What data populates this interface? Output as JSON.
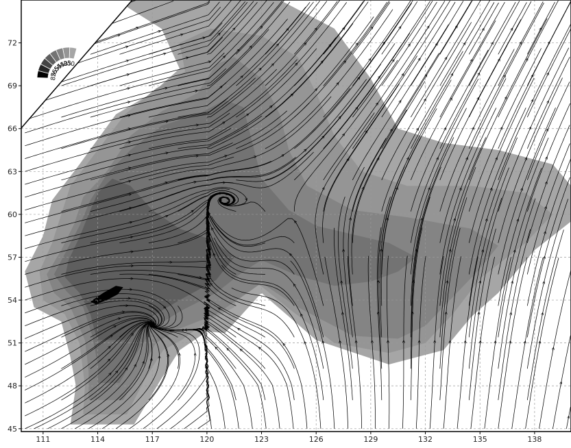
{
  "chart_data": {
    "type": "contour-streamline",
    "x_ticks": [
      "111",
      "114",
      "117",
      "120",
      "123",
      "126",
      "129",
      "132",
      "135",
      "138"
    ],
    "y_ticks": [
      "45",
      "48",
      "51",
      "54",
      "57",
      "60",
      "63",
      "66",
      "69",
      "72"
    ],
    "xlim": [
      109.8,
      140
    ],
    "ylim": [
      44.8,
      75
    ],
    "grid": true,
    "legend_placement": "top-left",
    "legend_levels": [
      "30",
      "35",
      "40",
      "45",
      "55",
      "65",
      "75",
      "85"
    ],
    "legend_colors": [
      "#a6a6a6",
      "#959595",
      "#848484",
      "#737373",
      "#5e5e5e",
      "#454545",
      "#262626",
      "#000000"
    ],
    "contours": [
      {
        "level": 30,
        "color": "#a6a6a6",
        "polygon": [
          [
            112.5,
            45.3
          ],
          [
            116,
            45.3
          ],
          [
            117.5,
            48.5
          ],
          [
            118.5,
            50.5
          ],
          [
            120,
            51.8
          ],
          [
            121,
            51.7
          ],
          [
            123,
            54.5
          ],
          [
            126,
            51.2
          ],
          [
            130,
            49.5
          ],
          [
            133,
            50.5
          ],
          [
            134.5,
            52.8
          ],
          [
            136,
            54.5
          ],
          [
            138,
            57.5
          ],
          [
            140,
            59.5
          ],
          [
            140,
            62
          ],
          [
            139,
            63.5
          ],
          [
            136,
            64.5
          ],
          [
            133,
            65
          ],
          [
            130.5,
            66
          ],
          [
            129,
            69.5
          ],
          [
            127,
            73
          ],
          [
            124,
            75
          ],
          [
            120,
            75
          ],
          [
            117,
            75
          ],
          [
            115,
            75
          ],
          [
            117.5,
            73
          ],
          [
            118.5,
            70.2
          ],
          [
            117,
            68.5
          ],
          [
            115,
            67
          ],
          [
            113,
            63.5
          ],
          [
            111.5,
            61
          ],
          [
            111,
            58.5
          ],
          [
            110,
            56
          ],
          [
            110.5,
            53.5
          ],
          [
            112,
            52.5
          ],
          [
            112.5,
            50
          ],
          [
            112.8,
            48
          ]
        ]
      },
      {
        "level": 35,
        "color": "#959595",
        "polygon": [
          [
            113.2,
            46
          ],
          [
            115.6,
            46
          ],
          [
            116.6,
            48.5
          ],
          [
            117.6,
            50.5
          ],
          [
            118.6,
            51.2
          ],
          [
            120,
            52.5
          ],
          [
            121.5,
            53.5
          ],
          [
            122,
            56
          ],
          [
            124.5,
            53.4
          ],
          [
            127,
            51
          ],
          [
            130,
            50.3
          ],
          [
            132,
            51
          ],
          [
            133.5,
            53
          ],
          [
            135,
            55.5
          ],
          [
            137.5,
            58
          ],
          [
            139,
            60
          ],
          [
            137.5,
            61.5
          ],
          [
            134.5,
            62
          ],
          [
            131,
            62
          ],
          [
            128.5,
            63
          ],
          [
            127,
            65.5
          ],
          [
            126,
            68.5
          ],
          [
            125,
            71
          ],
          [
            123,
            72.5
          ],
          [
            120.2,
            73
          ],
          [
            118.5,
            72
          ],
          [
            118.8,
            70
          ],
          [
            117.2,
            68.8
          ],
          [
            115.5,
            67
          ],
          [
            114,
            64.5
          ],
          [
            112.5,
            62
          ],
          [
            112,
            60
          ],
          [
            111.5,
            58
          ],
          [
            110.8,
            56
          ],
          [
            111,
            54
          ],
          [
            112.2,
            53
          ],
          [
            113,
            51
          ],
          [
            113.3,
            48
          ]
        ]
      },
      {
        "level": 40,
        "color": "#848484",
        "polygon": [
          [
            113.5,
            47
          ],
          [
            115.4,
            47
          ],
          [
            116.3,
            49
          ],
          [
            117.2,
            51
          ],
          [
            118.5,
            52
          ],
          [
            120.5,
            53
          ],
          [
            122,
            54.3
          ],
          [
            123,
            55.2
          ],
          [
            125,
            53.5
          ],
          [
            128,
            51.5
          ],
          [
            130.5,
            51.3
          ],
          [
            132,
            52.2
          ],
          [
            133.5,
            54.2
          ],
          [
            135,
            56.2
          ],
          [
            136,
            57.8
          ],
          [
            134.5,
            59
          ],
          [
            131,
            59.8
          ],
          [
            128,
            60.3
          ],
          [
            125.5,
            62
          ],
          [
            124.5,
            64.5
          ],
          [
            124,
            67
          ],
          [
            123,
            69.5
          ],
          [
            121.5,
            71
          ],
          [
            120.5,
            70.5
          ],
          [
            119.5,
            68.5
          ],
          [
            117.5,
            67.2
          ],
          [
            115.8,
            65.5
          ],
          [
            114.5,
            63
          ],
          [
            113.2,
            61.2
          ],
          [
            112.7,
            59.3
          ],
          [
            112,
            57.5
          ],
          [
            111.2,
            55.8
          ],
          [
            111.6,
            54.5
          ],
          [
            112.5,
            53.5
          ],
          [
            113.3,
            51.2
          ],
          [
            113.5,
            49
          ]
        ]
      },
      {
        "level": 45,
        "color": "#737373",
        "polygon": [
          [
            114,
            48.2
          ],
          [
            115.2,
            48.2
          ],
          [
            116,
            50
          ],
          [
            117,
            52
          ],
          [
            118.5,
            53.2
          ],
          [
            120.5,
            54.5
          ],
          [
            122,
            56
          ],
          [
            123,
            56.8
          ],
          [
            125,
            55.7
          ],
          [
            127,
            55
          ],
          [
            129,
            55.3
          ],
          [
            130.5,
            56
          ],
          [
            131.5,
            57
          ],
          [
            130,
            58
          ],
          [
            128,
            58.6
          ],
          [
            126,
            59.2
          ],
          [
            124.5,
            60.3
          ],
          [
            123,
            62.5
          ],
          [
            122.5,
            65
          ],
          [
            122,
            67.5
          ],
          [
            121,
            68
          ],
          [
            119.5,
            67
          ],
          [
            117.5,
            66.2
          ],
          [
            115.8,
            64.5
          ],
          [
            114.5,
            62.8
          ],
          [
            113.6,
            61
          ],
          [
            113,
            59.2
          ],
          [
            112.3,
            57.5
          ],
          [
            111.6,
            55.8
          ],
          [
            112.3,
            54.6
          ],
          [
            113.2,
            53.5
          ],
          [
            113.7,
            51.5
          ],
          [
            114,
            49.5
          ]
        ]
      },
      {
        "level": 55,
        "color": "#5e5e5e",
        "polygon": [
          [
            114,
            51.2
          ],
          [
            115.5,
            51.2
          ],
          [
            116.5,
            52.5
          ],
          [
            118.5,
            54
          ],
          [
            120.5,
            55.4
          ],
          [
            121.5,
            57
          ],
          [
            120.3,
            58.2
          ],
          [
            118.5,
            59
          ],
          [
            117,
            60.3
          ],
          [
            115.8,
            62
          ],
          [
            114.8,
            62.5
          ],
          [
            114,
            61.5
          ],
          [
            113.5,
            60
          ],
          [
            113,
            58.4
          ],
          [
            112.4,
            56.8
          ],
          [
            112.2,
            55.6
          ],
          [
            113,
            54.5
          ],
          [
            113.6,
            53
          ],
          [
            113.8,
            52
          ]
        ]
      },
      {
        "level": 85,
        "color": "#000000",
        "polygon": [
          [
            113.6,
            53.9
          ],
          [
            114.3,
            54.5
          ],
          [
            115,
            55
          ],
          [
            115.4,
            54.9
          ],
          [
            115.1,
            54.4
          ],
          [
            114.5,
            54
          ],
          [
            113.9,
            53.7
          ]
        ]
      }
    ],
    "streamlines_description_free": true
  }
}
